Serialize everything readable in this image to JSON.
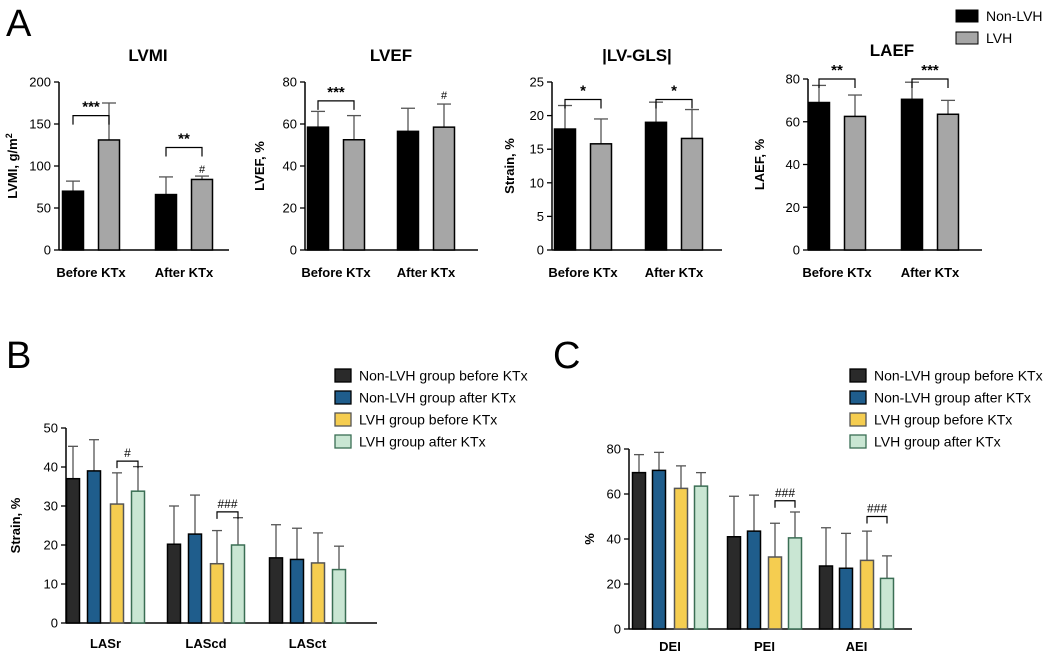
{
  "panel_labels": {
    "a": "A",
    "b": "B",
    "c": "C"
  },
  "legend_a": [
    {
      "label": "Non-LVH",
      "color": "#000000"
    },
    {
      "label": "LVH",
      "color": "#a6a6a6"
    }
  ],
  "legend_bc": [
    {
      "label": "Non-LVH group before KTx",
      "color": "#2a2a2a"
    },
    {
      "label": "Non-LVH group after KTx",
      "color": "#1f5d8c"
    },
    {
      "label": "LVH group before KTx",
      "color": "#f5cd50"
    },
    {
      "label": "LVH group after KTx",
      "color": "#c9e6d3"
    }
  ],
  "chart_data": [
    {
      "type": "bar",
      "title": "LVMI",
      "ylabel": "LVMI, g/m",
      "ylabel_sup": "2",
      "categories": [
        "Before KTx",
        "After KTx"
      ],
      "series": [
        {
          "name": "Non-LVH",
          "values": [
            70,
            66
          ],
          "errors": [
            12,
            21
          ]
        },
        {
          "name": "LVH",
          "values": [
            131,
            84
          ],
          "errors": [
            44,
            4
          ]
        }
      ],
      "ylim": [
        0,
        200
      ],
      "yticks": [
        0,
        50,
        100,
        150,
        200
      ],
      "annotations": [
        {
          "text": "***",
          "category": 0,
          "series": [
            0,
            1
          ],
          "level": 160
        },
        {
          "text": "**",
          "category": 1,
          "series": [
            0,
            1
          ],
          "level": 122
        },
        {
          "text": "#",
          "category": 1,
          "series": [
            1
          ],
          "level": 89
        }
      ]
    },
    {
      "type": "bar",
      "title": "LVEF",
      "ylabel": "LVEF, %",
      "categories": [
        "Before KTx",
        "After KTx"
      ],
      "series": [
        {
          "name": "Non-LVH",
          "values": [
            58.5,
            56.5
          ],
          "errors": [
            7.5,
            11
          ]
        },
        {
          "name": "LVH",
          "values": [
            52.5,
            58.5
          ],
          "errors": [
            11.5,
            11
          ]
        }
      ],
      "ylim": [
        0,
        80
      ],
      "yticks": [
        0,
        20,
        40,
        60,
        80
      ],
      "annotations": [
        {
          "text": "***",
          "category": 0,
          "series": [
            0,
            1
          ],
          "level": 71
        },
        {
          "text": "#",
          "category": 1,
          "series": [
            1
          ],
          "level": 71
        }
      ]
    },
    {
      "type": "bar",
      "title": "|LV-GLS|",
      "ylabel": "Strain, %",
      "categories": [
        "Before KTx",
        "After KTx"
      ],
      "series": [
        {
          "name": "Non-LVH",
          "values": [
            18,
            19
          ],
          "errors": [
            3.5,
            3
          ]
        },
        {
          "name": "LVH",
          "values": [
            15.8,
            16.6
          ],
          "errors": [
            3.7,
            4.3
          ]
        }
      ],
      "ylim": [
        0,
        25
      ],
      "yticks": [
        0,
        5,
        10,
        15,
        20,
        25
      ],
      "annotations": [
        {
          "text": "*",
          "category": 0,
          "series": [
            0,
            1
          ],
          "level": 22.4
        },
        {
          "text": "*",
          "category": 1,
          "series": [
            0,
            1
          ],
          "level": 22.4
        }
      ]
    },
    {
      "type": "bar",
      "title": "LAEF",
      "ylabel": "LAEF, %",
      "categories": [
        "Before KTx",
        "After KTx"
      ],
      "series": [
        {
          "name": "Non-LVH",
          "values": [
            69,
            70.5
          ],
          "errors": [
            8,
            8
          ]
        },
        {
          "name": "LVH",
          "values": [
            62.5,
            63.5
          ],
          "errors": [
            10,
            6.5
          ]
        }
      ],
      "ylim": [
        0,
        80
      ],
      "yticks": [
        0,
        20,
        40,
        60,
        80
      ],
      "annotations": [
        {
          "text": "**",
          "category": 0,
          "series": [
            0,
            1
          ],
          "level": 80
        },
        {
          "text": "***",
          "category": 1,
          "series": [
            0,
            1
          ],
          "level": 80
        }
      ]
    },
    {
      "type": "bar",
      "title": "",
      "ylabel": "Strain, %",
      "categories": [
        "LASr",
        "LAScd",
        "LASct"
      ],
      "series": [
        {
          "name": "Non-LVH group before KTx",
          "values": [
            37,
            20.2,
            16.7
          ],
          "errors": [
            8.3,
            9.8,
            8.5
          ]
        },
        {
          "name": "Non-LVH group after KTx",
          "values": [
            39,
            22.8,
            16.3
          ],
          "errors": [
            8,
            10,
            8
          ]
        },
        {
          "name": "LVH group before KTx",
          "values": [
            30.5,
            15.2,
            15.4
          ],
          "errors": [
            8,
            8.5,
            7.7
          ]
        },
        {
          "name": "LVH group after KTx",
          "values": [
            33.8,
            20,
            13.7
          ],
          "errors": [
            6.3,
            7,
            6
          ]
        }
      ],
      "ylim": [
        0,
        50
      ],
      "yticks": [
        0,
        10,
        20,
        30,
        40,
        50
      ],
      "annotations": [
        {
          "text": "#",
          "category": 0,
          "series": [
            2,
            3
          ],
          "level": 41.5
        },
        {
          "text": "###",
          "category": 1,
          "series": [
            2,
            3
          ],
          "level": 28.5
        }
      ]
    },
    {
      "type": "bar",
      "title": "",
      "ylabel": "%",
      "categories": [
        "DEI",
        "PEI",
        "AEI"
      ],
      "series": [
        {
          "name": "Non-LVH group before KTx",
          "values": [
            69.5,
            41,
            28
          ],
          "errors": [
            8,
            18,
            17
          ]
        },
        {
          "name": "Non-LVH group after KTx",
          "values": [
            70.5,
            43.5,
            27
          ],
          "errors": [
            8,
            16,
            15.5
          ]
        },
        {
          "name": "LVH group before KTx",
          "values": [
            62.5,
            32,
            30.5
          ],
          "errors": [
            10,
            15,
            13
          ]
        },
        {
          "name": "LVH group after KTx",
          "values": [
            63.5,
            40.5,
            22.5
          ],
          "errors": [
            6,
            11.5,
            10
          ]
        }
      ],
      "ylim": [
        0,
        80
      ],
      "yticks": [
        0,
        20,
        40,
        60,
        80
      ],
      "annotations": [
        {
          "text": "###",
          "category": 1,
          "series": [
            2,
            3
          ],
          "level": 57
        },
        {
          "text": "###",
          "category": 2,
          "series": [
            2,
            3
          ],
          "level": 50
        }
      ]
    }
  ]
}
